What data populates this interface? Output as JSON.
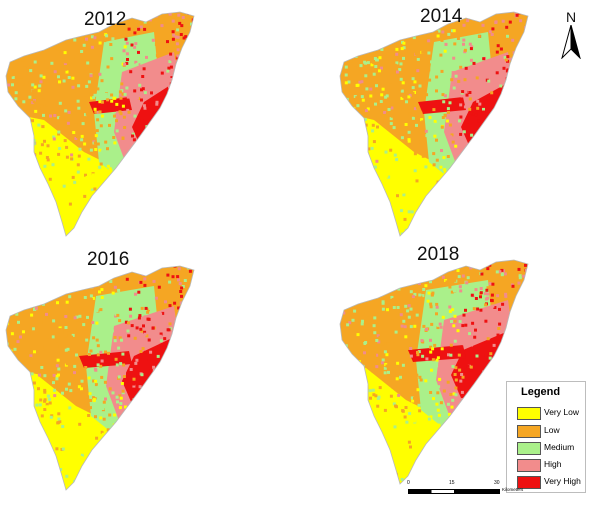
{
  "maps": [
    {
      "year": "2012"
    },
    {
      "year": "2014"
    },
    {
      "year": "2016"
    },
    {
      "year": "2018"
    }
  ],
  "legend": {
    "title": "Legend",
    "items": [
      {
        "label": "Very Low",
        "color": "#ffff00"
      },
      {
        "label": "Low",
        "color": "#f5a623"
      },
      {
        "label": "Medium",
        "color": "#aaf08a"
      },
      {
        "label": "High",
        "color": "#f28c8c"
      },
      {
        "label": "Very High",
        "color": "#ee1111"
      }
    ]
  },
  "north_arrow": {
    "label": "N",
    "icon": "north-arrow-icon"
  },
  "scale_bar": {
    "ticks": [
      "0",
      "15",
      "30"
    ],
    "unit": "Kilometers"
  }
}
